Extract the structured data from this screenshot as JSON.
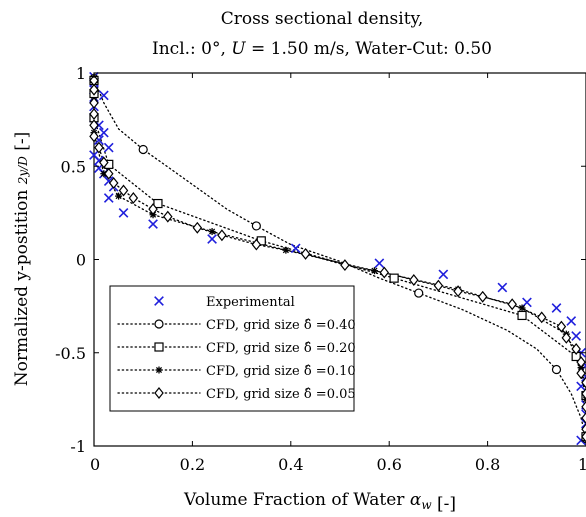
{
  "chart_data": {
    "type": "scatter",
    "title": [
      "Cross sectional density,",
      "Incl.: 0°, U = 1.50 m/s, Water-Cut: 0.50"
    ],
    "xlabel": "Volume Fraction of Water α_w [-]",
    "ylabel": "Normalized y-postition 2y/D [-]",
    "xlim": [
      0,
      1
    ],
    "ylim": [
      -1,
      1
    ],
    "xticks": [
      0,
      0.2,
      0.4,
      0.6,
      0.8,
      1
    ],
    "xtick_labels": [
      "0",
      "0.2",
      "0.4",
      "0.6",
      "0.8",
      "1"
    ],
    "yticks": [
      1,
      0.5,
      0,
      -0.5,
      -1
    ],
    "ytick_labels": [
      "1",
      "0.5",
      "0",
      "-0.5",
      "-1"
    ],
    "grid": false,
    "legend_position": "bottom-left",
    "series": [
      {
        "name": "Experimental",
        "marker": "x",
        "color": "#1f1fdc",
        "line": false,
        "points": [
          [
            0.0,
            0.98
          ],
          [
            0.0,
            0.95
          ],
          [
            0.0,
            0.91
          ],
          [
            0.0,
            0.87
          ],
          [
            0.02,
            0.88
          ],
          [
            0.0,
            0.82
          ],
          [
            0.0,
            0.76
          ],
          [
            0.01,
            0.72
          ],
          [
            0.02,
            0.68
          ],
          [
            0.01,
            0.64
          ],
          [
            0.03,
            0.6
          ],
          [
            0.0,
            0.56
          ],
          [
            0.01,
            0.53
          ],
          [
            0.01,
            0.49
          ],
          [
            0.02,
            0.46
          ],
          [
            0.03,
            0.42
          ],
          [
            0.04,
            0.39
          ],
          [
            0.03,
            0.33
          ],
          [
            0.06,
            0.25
          ],
          [
            0.12,
            0.19
          ],
          [
            0.24,
            0.11
          ],
          [
            0.41,
            0.06
          ],
          [
            0.58,
            -0.02
          ],
          [
            0.71,
            -0.08
          ],
          [
            0.83,
            -0.15
          ],
          [
            0.88,
            -0.23
          ],
          [
            0.94,
            -0.26
          ],
          [
            0.97,
            -0.33
          ],
          [
            0.98,
            -0.41
          ],
          [
            0.99,
            -0.5
          ],
          [
            1.0,
            -0.57
          ],
          [
            1.0,
            -0.63
          ],
          [
            0.99,
            -0.68
          ],
          [
            1.0,
            -0.73
          ],
          [
            1.0,
            -0.78
          ],
          [
            1.0,
            -0.83
          ],
          [
            1.0,
            -0.88
          ],
          [
            1.0,
            -0.92
          ],
          [
            0.99,
            -0.97
          ]
        ]
      },
      {
        "name": "CFD, grid size δ̂ =0.40",
        "marker": "circle",
        "color": "#000000",
        "line": true,
        "markers": [
          [
            0.0,
            0.97
          ],
          [
            0.1,
            0.59
          ],
          [
            0.33,
            0.18
          ],
          [
            0.66,
            -0.18
          ],
          [
            0.94,
            -0.59
          ],
          [
            1.0,
            -0.96
          ]
        ],
        "curve": [
          [
            0.0,
            0.97
          ],
          [
            0.02,
            0.84
          ],
          [
            0.05,
            0.7
          ],
          [
            0.1,
            0.59
          ],
          [
            0.18,
            0.44
          ],
          [
            0.27,
            0.27
          ],
          [
            0.33,
            0.18
          ],
          [
            0.4,
            0.08
          ],
          [
            0.5,
            -0.01
          ],
          [
            0.58,
            -0.1
          ],
          [
            0.66,
            -0.18
          ],
          [
            0.75,
            -0.27
          ],
          [
            0.84,
            -0.38
          ],
          [
            0.9,
            -0.48
          ],
          [
            0.94,
            -0.59
          ],
          [
            0.97,
            -0.72
          ],
          [
            0.99,
            -0.85
          ],
          [
            1.0,
            -0.96
          ]
        ]
      },
      {
        "name": "CFD, grid size δ̂ =0.20",
        "marker": "square",
        "color": "#000000",
        "line": true,
        "markers": [
          [
            0.0,
            0.96
          ],
          [
            0.0,
            0.89
          ],
          [
            0.0,
            0.76
          ],
          [
            0.03,
            0.51
          ],
          [
            0.13,
            0.3
          ],
          [
            0.34,
            0.1
          ],
          [
            0.61,
            -0.1
          ],
          [
            0.87,
            -0.3
          ],
          [
            0.98,
            -0.52
          ],
          [
            1.0,
            -0.73
          ],
          [
            1.0,
            -0.95
          ]
        ]
      },
      {
        "name": "CFD, grid size δ̂ =0.10",
        "marker": "star",
        "color": "#000000",
        "line": true,
        "markers": [
          [
            0.0,
            0.95
          ],
          [
            0.0,
            0.85
          ],
          [
            0.0,
            0.68
          ],
          [
            0.02,
            0.46
          ],
          [
            0.05,
            0.34
          ],
          [
            0.12,
            0.24
          ],
          [
            0.24,
            0.15
          ],
          [
            0.39,
            0.05
          ],
          [
            0.57,
            -0.06
          ],
          [
            0.74,
            -0.16
          ],
          [
            0.87,
            -0.26
          ],
          [
            0.96,
            -0.4
          ],
          [
            0.99,
            -0.58
          ],
          [
            1.0,
            -0.75
          ],
          [
            1.0,
            -0.95
          ]
        ]
      },
      {
        "name": "CFD, grid size δ̂ =0.05",
        "marker": "diamond",
        "color": "#000000",
        "line": true,
        "markers": [
          [
            0.0,
            0.96
          ],
          [
            0.0,
            0.91
          ],
          [
            0.0,
            0.84
          ],
          [
            0.0,
            0.78
          ],
          [
            0.0,
            0.72
          ],
          [
            0.0,
            0.66
          ],
          [
            0.01,
            0.6
          ],
          [
            0.02,
            0.52
          ],
          [
            0.03,
            0.46
          ],
          [
            0.04,
            0.41
          ],
          [
            0.06,
            0.37
          ],
          [
            0.08,
            0.33
          ],
          [
            0.12,
            0.27
          ],
          [
            0.15,
            0.23
          ],
          [
            0.21,
            0.17
          ],
          [
            0.26,
            0.13
          ],
          [
            0.33,
            0.08
          ],
          [
            0.43,
            0.03
          ],
          [
            0.51,
            -0.03
          ],
          [
            0.59,
            -0.07
          ],
          [
            0.65,
            -0.11
          ],
          [
            0.7,
            -0.14
          ],
          [
            0.74,
            -0.17
          ],
          [
            0.79,
            -0.2
          ],
          [
            0.85,
            -0.24
          ],
          [
            0.91,
            -0.31
          ],
          [
            0.95,
            -0.36
          ],
          [
            0.96,
            -0.42
          ],
          [
            0.98,
            -0.48
          ],
          [
            0.99,
            -0.55
          ],
          [
            0.99,
            -0.61
          ],
          [
            1.0,
            -0.66
          ],
          [
            1.0,
            -0.72
          ],
          [
            1.0,
            -0.79
          ],
          [
            1.0,
            -0.85
          ],
          [
            1.0,
            -0.91
          ],
          [
            1.0,
            -0.95
          ]
        ]
      }
    ]
  }
}
